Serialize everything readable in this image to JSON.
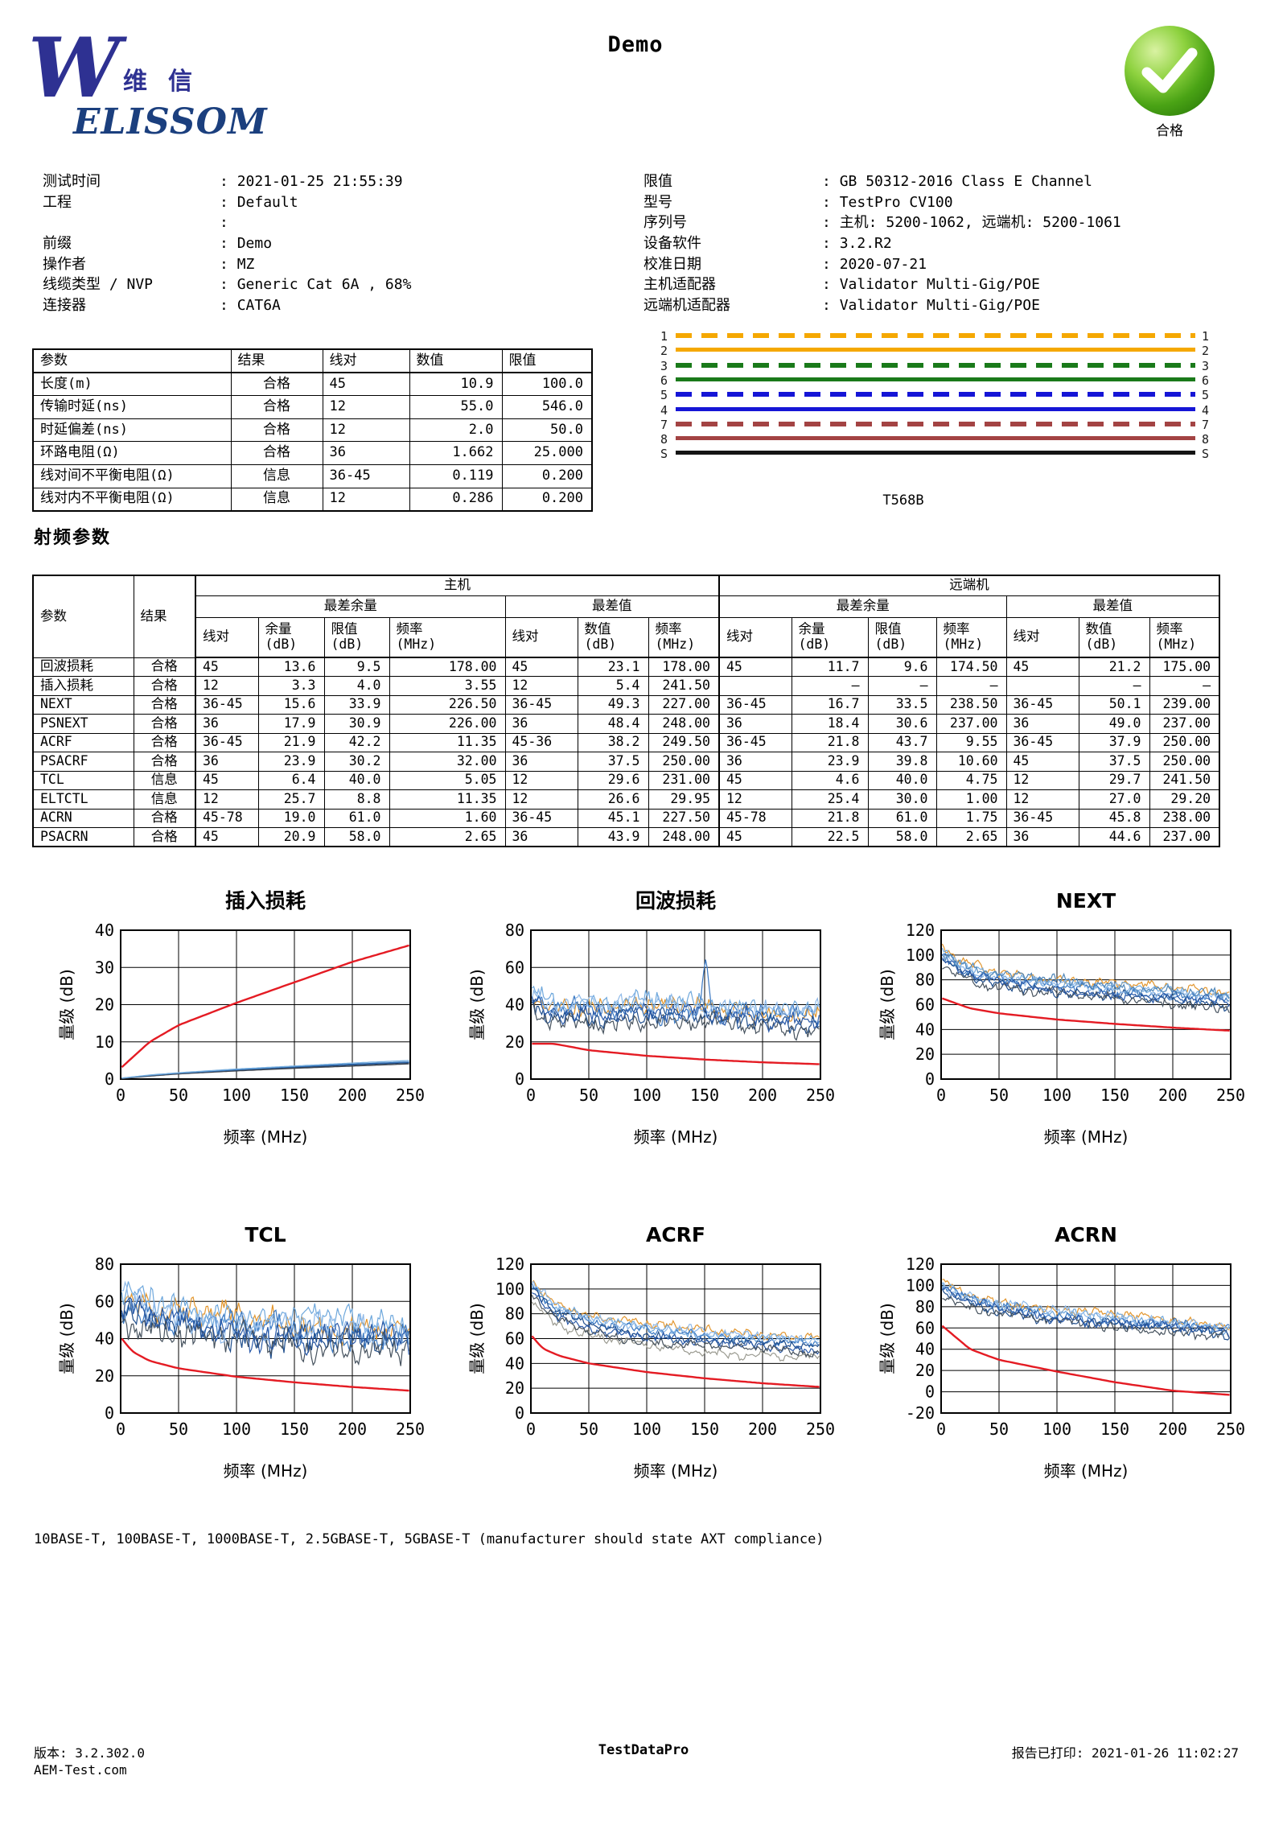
{
  "header": {
    "title": "Demo",
    "logo": {
      "w": "W",
      "cn": "维信",
      "name": "ELISSOM"
    },
    "badge": {
      "label": "合格",
      "check_color": "#ffffff",
      "green": "#3f9a14"
    }
  },
  "info_left": [
    {
      "label": "测试时间",
      "value": "2021-01-25 21:55:39"
    },
    {
      "label": "工程",
      "value": "Default"
    },
    {
      "label": "",
      "value": ""
    },
    {
      "label": "前缀",
      "value": "Demo"
    },
    {
      "label": "操作者",
      "value": "MZ"
    },
    {
      "label": "线缆类型 / NVP",
      "value": "Generic Cat 6A , 68%"
    },
    {
      "label": "连接器",
      "value": "CAT6A"
    }
  ],
  "info_right": [
    {
      "label": "限值",
      "value": "GB 50312-2016 Class E Channel"
    },
    {
      "label": "型号",
      "value": "TestPro CV100"
    },
    {
      "label": "序列号",
      "value": "主机: 5200-1062, 远端机: 5200-1061"
    },
    {
      "label": "设备软件",
      "value": "3.2.R2"
    },
    {
      "label": "校准日期",
      "value": "2020-07-21"
    },
    {
      "label": "主机适配器",
      "value": "Validator Multi-Gig/POE"
    },
    {
      "label": "远端机适配器",
      "value": "Validator Multi-Gig/POE"
    }
  ],
  "summary_table": {
    "headers": [
      "参数",
      "结果",
      "线对",
      "数值",
      "限值"
    ],
    "rows": [
      [
        "长度(m)",
        "合格",
        "45",
        "10.9",
        "100.0"
      ],
      [
        "传输时延(ns)",
        "合格",
        "12",
        "55.0",
        "546.0"
      ],
      [
        "时延偏差(ns)",
        "合格",
        "12",
        "2.0",
        "50.0"
      ],
      [
        "环路电阻(Ω)",
        "合格",
        "36",
        "1.662",
        "25.000"
      ],
      [
        "线对间不平衡电阻(Ω)",
        "信息",
        "36-45",
        "0.119",
        "0.200"
      ],
      [
        "线对内不平衡电阻(Ω)",
        "信息",
        "12",
        "0.286",
        "0.200"
      ]
    ]
  },
  "wiremap": {
    "caption": "T568B",
    "lines": [
      {
        "left": "1",
        "right": "1",
        "color": "#F5A800",
        "dashed": true
      },
      {
        "left": "2",
        "right": "2",
        "color": "#F5A800",
        "dashed": false
      },
      {
        "left": "3",
        "right": "3",
        "color": "#1A7A1A",
        "dashed": true
      },
      {
        "left": "6",
        "right": "6",
        "color": "#1A7A1A",
        "dashed": false
      },
      {
        "left": "5",
        "right": "5",
        "color": "#1515D6",
        "dashed": true
      },
      {
        "left": "4",
        "right": "4",
        "color": "#1515D6",
        "dashed": false
      },
      {
        "left": "7",
        "right": "7",
        "color": "#A34343",
        "dashed": true
      },
      {
        "left": "8",
        "right": "8",
        "color": "#A34343",
        "dashed": false
      },
      {
        "left": "S",
        "right": "S",
        "color": "#141414",
        "dashed": false
      }
    ]
  },
  "rf_table": {
    "heading": "射频参数",
    "top_groups": [
      "主机",
      "远端机"
    ],
    "sub_groups": [
      "最差余量",
      "最差值"
    ],
    "corner_headers": [
      "参数",
      "结果"
    ],
    "col_headers": [
      "线对",
      "余量\n(dB)",
      "限值\n(dB)",
      "频率\n(MHz)",
      "线对",
      "数值\n(dB)",
      "频率\n(MHz)",
      "线对",
      "余量\n(dB)",
      "限值\n(dB)",
      "频率\n(MHz)",
      "线对",
      "数值\n(dB)",
      "频率\n(MHz)"
    ],
    "rows": [
      [
        "回波损耗",
        "合格",
        "45",
        "13.6",
        "9.5",
        "178.00",
        "45",
        "23.1",
        "178.00",
        "45",
        "11.7",
        "9.6",
        "174.50",
        "45",
        "21.2",
        "175.00"
      ],
      [
        "插入损耗",
        "合格",
        "12",
        "3.3",
        "4.0",
        "3.55",
        "12",
        "5.4",
        "241.50",
        "",
        "–",
        "–",
        "–",
        "",
        "–",
        "–"
      ],
      [
        "NEXT",
        "合格",
        "36-45",
        "15.6",
        "33.9",
        "226.50",
        "36-45",
        "49.3",
        "227.00",
        "36-45",
        "16.7",
        "33.5",
        "238.50",
        "36-45",
        "50.1",
        "239.00"
      ],
      [
        "PSNEXT",
        "合格",
        "36",
        "17.9",
        "30.9",
        "226.00",
        "36",
        "48.4",
        "248.00",
        "36",
        "18.4",
        "30.6",
        "237.00",
        "36",
        "49.0",
        "237.00"
      ],
      [
        "ACRF",
        "合格",
        "36-45",
        "21.9",
        "42.2",
        "11.35",
        "45-36",
        "38.2",
        "249.50",
        "36-45",
        "21.8",
        "43.7",
        "9.55",
        "36-45",
        "37.9",
        "250.00"
      ],
      [
        "PSACRF",
        "合格",
        "36",
        "23.9",
        "30.2",
        "32.00",
        "36",
        "37.5",
        "250.00",
        "36",
        "23.9",
        "39.8",
        "10.60",
        "45",
        "37.5",
        "250.00"
      ],
      [
        "TCL",
        "信息",
        "45",
        "6.4",
        "40.0",
        "5.05",
        "12",
        "29.6",
        "231.00",
        "45",
        "4.6",
        "40.0",
        "4.75",
        "12",
        "29.7",
        "241.50"
      ],
      [
        "ELTCTL",
        "信息",
        "12",
        "25.7",
        "8.8",
        "11.35",
        "12",
        "26.6",
        "29.95",
        "12",
        "25.4",
        "30.0",
        "1.00",
        "12",
        "27.0",
        "29.20"
      ],
      [
        "ACRN",
        "合格",
        "45-78",
        "19.0",
        "61.0",
        "1.60",
        "36-45",
        "45.1",
        "227.50",
        "45-78",
        "21.8",
        "61.0",
        "1.75",
        "36-45",
        "45.8",
        "238.00"
      ],
      [
        "PSACRN",
        "合格",
        "45",
        "20.9",
        "58.0",
        "2.65",
        "36",
        "43.9",
        "248.00",
        "45",
        "22.5",
        "58.0",
        "2.65",
        "36",
        "44.6",
        "237.00"
      ]
    ]
  },
  "chart_data": [
    {
      "id": "il",
      "type": "line",
      "title": "插入损耗",
      "xlabel": "频率 (MHz)",
      "ylabel": "量级 (dB)",
      "xlim": [
        0,
        250
      ],
      "ylim": [
        0,
        40
      ],
      "xticks": [
        0,
        50,
        100,
        150,
        200,
        250
      ],
      "yticks": [
        0,
        10,
        20,
        30,
        40
      ],
      "limit_color": "#e41b23",
      "limit_points": [
        [
          1,
          3.2
        ],
        [
          25,
          10.0
        ],
        [
          50,
          14.5
        ],
        [
          100,
          20.5
        ],
        [
          150,
          26.0
        ],
        [
          200,
          31.5
        ],
        [
          250,
          36.0
        ]
      ],
      "smooth_series": [
        {
          "color": "#1d3e6b",
          "points": [
            [
              1,
              0.2
            ],
            [
              25,
              0.9
            ],
            [
              50,
              1.5
            ],
            [
              100,
              2.4
            ],
            [
              150,
              3.1
            ],
            [
              200,
              3.8
            ],
            [
              250,
              4.4
            ]
          ]
        },
        {
          "color": "#3f4650",
          "points": [
            [
              1,
              0.15
            ],
            [
              25,
              0.8
            ],
            [
              50,
              1.4
            ],
            [
              100,
              2.2
            ],
            [
              150,
              2.9
            ],
            [
              200,
              3.5
            ],
            [
              250,
              4.1
            ]
          ]
        },
        {
          "color": "#2e6db4",
          "points": [
            [
              1,
              0.25
            ],
            [
              25,
              1.0
            ],
            [
              50,
              1.6
            ],
            [
              100,
              2.5
            ],
            [
              150,
              3.3
            ],
            [
              200,
              4.0
            ],
            [
              250,
              4.6
            ]
          ]
        },
        {
          "color": "#77aede",
          "points": [
            [
              1,
              0.25
            ],
            [
              25,
              1.1
            ],
            [
              50,
              1.7
            ],
            [
              100,
              2.7
            ],
            [
              150,
              3.5
            ],
            [
              200,
              4.3
            ],
            [
              250,
              5.0
            ]
          ]
        }
      ]
    },
    {
      "id": "rl",
      "type": "line",
      "title": "回波损耗",
      "xlabel": "频率 (MHz)",
      "ylabel": "量级 (dB)",
      "xlim": [
        0,
        250
      ],
      "ylim": [
        0,
        80
      ],
      "xticks": [
        0,
        50,
        100,
        150,
        200,
        250
      ],
      "yticks": [
        0,
        20,
        40,
        60,
        80
      ],
      "limit_color": "#e41b23",
      "limit_points": [
        [
          1,
          19
        ],
        [
          20,
          19
        ],
        [
          50,
          15.5
        ],
        [
          100,
          12.5
        ],
        [
          150,
          10.5
        ],
        [
          200,
          9
        ],
        [
          250,
          8
        ]
      ],
      "trace_base": [
        [
          1,
          45
        ],
        [
          8,
          40
        ],
        [
          20,
          38
        ],
        [
          60,
          37
        ],
        [
          120,
          36
        ],
        [
          180,
          35
        ],
        [
          250,
          33
        ]
      ],
      "noise_amp": 5.5,
      "series": [
        {
          "color": "#e2962e",
          "offset": 2,
          "seed": 11
        },
        {
          "color": "#6fa8dc",
          "offset": 5,
          "seed": 12
        },
        {
          "color": "#3a78c2",
          "offset": 0,
          "seed": 13,
          "spikes": [
            {
              "x": 151,
              "h": 30,
              "w": 3.5
            }
          ]
        },
        {
          "color": "#1f4e8c",
          "offset": -3,
          "seed": 14
        },
        {
          "color": "#46525e",
          "offset": -6,
          "seed": 15
        },
        {
          "color": "#8fb9e8",
          "offset": 3,
          "seed": 16
        },
        {
          "color": "#2a5aa8",
          "offset": -1,
          "seed": 17
        }
      ]
    },
    {
      "id": "next",
      "type": "line",
      "title": "NEXT",
      "xlabel": "频率 (MHz)",
      "ylabel": "量级 (dB)",
      "xlim": [
        0,
        250
      ],
      "ylim": [
        0,
        120
      ],
      "xticks": [
        0,
        50,
        100,
        150,
        200,
        250
      ],
      "yticks": [
        0,
        20,
        40,
        60,
        80,
        100,
        120
      ],
      "limit_color": "#e41b23",
      "limit_points": [
        [
          1,
          65
        ],
        [
          25,
          57
        ],
        [
          50,
          53
        ],
        [
          100,
          48
        ],
        [
          150,
          44.5
        ],
        [
          200,
          41.5
        ],
        [
          250,
          39
        ]
      ],
      "trace_base": [
        [
          1,
          100
        ],
        [
          15,
          90
        ],
        [
          40,
          82
        ],
        [
          80,
          77
        ],
        [
          130,
          72
        ],
        [
          190,
          68
        ],
        [
          250,
          64
        ]
      ],
      "noise_amp": 4.5,
      "series": [
        {
          "color": "#e2962e",
          "offset": 6,
          "seed": 21
        },
        {
          "color": "#6fa8dc",
          "offset": 3,
          "seed": 22
        },
        {
          "color": "#3a78c2",
          "offset": 0,
          "seed": 23
        },
        {
          "color": "#1f4e8c",
          "offset": -4,
          "seed": 24
        },
        {
          "color": "#46525e",
          "offset": -6,
          "seed": 25
        },
        {
          "color": "#8fb9e8",
          "offset": 2,
          "seed": 26
        },
        {
          "color": "#2a5aa8",
          "offset": -2,
          "seed": 27
        },
        {
          "color": "#4f86b8",
          "offset": 4,
          "seed": 28
        }
      ]
    },
    {
      "id": "tcl",
      "type": "line",
      "title": "TCL",
      "xlabel": "频率 (MHz)",
      "ylabel": "量级 (dB)",
      "xlim": [
        0,
        250
      ],
      "ylim": [
        0,
        80
      ],
      "xticks": [
        0,
        50,
        100,
        150,
        200,
        250
      ],
      "yticks": [
        0,
        20,
        40,
        60,
        80
      ],
      "limit_color": "#e41b23",
      "limit_points": [
        [
          1,
          40
        ],
        [
          10,
          33
        ],
        [
          25,
          28
        ],
        [
          50,
          24
        ],
        [
          100,
          19.5
        ],
        [
          150,
          16.5
        ],
        [
          200,
          14
        ],
        [
          250,
          12
        ]
      ],
      "trace_base": [
        [
          1,
          58
        ],
        [
          30,
          52
        ],
        [
          70,
          48
        ],
        [
          120,
          45
        ],
        [
          180,
          43
        ],
        [
          250,
          41
        ]
      ],
      "noise_amp": 8.5,
      "series": [
        {
          "color": "#e2962e",
          "offset": 4,
          "seed": 31
        },
        {
          "color": "#6fa8dc",
          "offset": 7,
          "seed": 32
        },
        {
          "color": "#3a78c2",
          "offset": 0,
          "seed": 33
        },
        {
          "color": "#1f4e8c",
          "offset": -4,
          "seed": 34
        },
        {
          "color": "#46525e",
          "offset": -7,
          "seed": 35
        },
        {
          "color": "#8fb9e8",
          "offset": 2,
          "seed": 36
        },
        {
          "color": "#2a5aa8",
          "offset": -2,
          "seed": 37
        }
      ]
    },
    {
      "id": "acrf",
      "type": "line",
      "title": "ACRF",
      "xlabel": "频率 (MHz)",
      "ylabel": "量级 (dB)",
      "xlim": [
        0,
        250
      ],
      "ylim": [
        0,
        120
      ],
      "xticks": [
        0,
        50,
        100,
        150,
        200,
        250
      ],
      "yticks": [
        0,
        20,
        40,
        60,
        80,
        100,
        120
      ],
      "limit_color": "#e41b23",
      "limit_points": [
        [
          1,
          62
        ],
        [
          10,
          52
        ],
        [
          25,
          46
        ],
        [
          50,
          40
        ],
        [
          100,
          33
        ],
        [
          150,
          28
        ],
        [
          200,
          24
        ],
        [
          250,
          21
        ]
      ],
      "trace_base": [
        [
          1,
          102
        ],
        [
          20,
          85
        ],
        [
          50,
          74
        ],
        [
          100,
          66
        ],
        [
          160,
          61
        ],
        [
          220,
          58
        ],
        [
          250,
          56
        ]
      ],
      "noise_amp": 4.0,
      "series": [
        {
          "color": "#e2962e",
          "offset": 5,
          "seed": 41
        },
        {
          "color": "#6fa8dc",
          "offset": 2,
          "seed": 42
        },
        {
          "color": "#3a78c2",
          "offset": 0,
          "seed": 43
        },
        {
          "color": "#1f4e8c",
          "offset": -3,
          "seed": 44
        },
        {
          "color": "#9a9a90",
          "offset": -12,
          "seed": 45
        },
        {
          "color": "#8fb9e8",
          "offset": 3,
          "seed": 46
        },
        {
          "color": "#2a5aa8",
          "offset": -5,
          "seed": 47
        },
        {
          "color": "#46525e",
          "offset": -8,
          "seed": 48
        }
      ]
    },
    {
      "id": "acrn",
      "type": "line",
      "title": "ACRN",
      "xlabel": "频率 (MHz)",
      "ylabel": "量级 (dB)",
      "xlim": [
        0,
        250
      ],
      "ylim": [
        -20,
        120
      ],
      "xticks": [
        0,
        50,
        100,
        150,
        200,
        250
      ],
      "yticks": [
        -20,
        0,
        20,
        40,
        60,
        80,
        100,
        120
      ],
      "limit_color": "#e41b23",
      "limit_points": [
        [
          1,
          62
        ],
        [
          25,
          40
        ],
        [
          50,
          30
        ],
        [
          100,
          19
        ],
        [
          150,
          9
        ],
        [
          200,
          1
        ],
        [
          250,
          -3
        ]
      ],
      "trace_base": [
        [
          1,
          98
        ],
        [
          20,
          88
        ],
        [
          50,
          80
        ],
        [
          100,
          72
        ],
        [
          160,
          66
        ],
        [
          220,
          61
        ],
        [
          250,
          58
        ]
      ],
      "noise_amp": 5.0,
      "series": [
        {
          "color": "#e2962e",
          "offset": 5,
          "seed": 51
        },
        {
          "color": "#6fa8dc",
          "offset": 2,
          "seed": 52
        },
        {
          "color": "#3a78c2",
          "offset": 0,
          "seed": 53
        },
        {
          "color": "#1f4e8c",
          "offset": -4,
          "seed": 54
        },
        {
          "color": "#46525e",
          "offset": -6,
          "seed": 55
        },
        {
          "color": "#8fb9e8",
          "offset": 3,
          "seed": 56
        },
        {
          "color": "#2a5aa8",
          "offset": -2,
          "seed": 57
        }
      ]
    }
  ],
  "footnote": "10BASE-T, 100BASE-T, 1000BASE-T, 2.5GBASE-T, 5GBASE-T (manufacturer should state AXT compliance)",
  "footer": {
    "version": "版本: 3.2.302.0",
    "site": "AEM-Test.com",
    "center": "TestDataPro",
    "printed": "报告已打印: 2021-01-26 11:02:27"
  }
}
